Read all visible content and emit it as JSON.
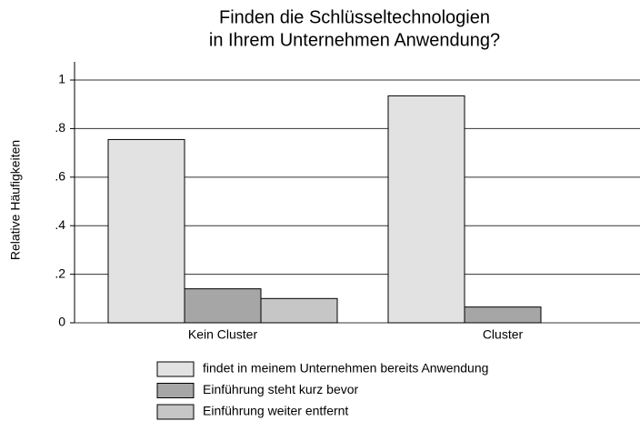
{
  "chart_data": {
    "type": "bar",
    "title": [
      "Finden die Schlüsseltechnologien",
      "in Ihrem Unternehmen Anwendung?"
    ],
    "y_label": "Relative Häufigkeiten",
    "categories": [
      "Kein Cluster",
      "Cluster"
    ],
    "series": [
      {
        "name": "findet in meinem Unternehmen bereits Anwendung",
        "color": "#e2e2e2",
        "values": [
          0.755,
          0.935
        ]
      },
      {
        "name": "Einführung steht kurz bevor",
        "color": "#a6a6a6",
        "values": [
          0.14,
          0.065
        ]
      },
      {
        "name": "Einführung weiter entfernt",
        "color": "#c6c6c6",
        "values": [
          0.1,
          0
        ]
      }
    ],
    "ylim": [
      0,
      1.075
    ],
    "yticks": [
      0,
      {
        "value": 0.2,
        "label": ".2"
      },
      {
        "value": 0.4,
        "label": ".4"
      },
      {
        "value": 0.6,
        "label": ".6"
      },
      {
        "value": 0.8,
        "label": ".8"
      },
      1
    ],
    "grid": true
  }
}
